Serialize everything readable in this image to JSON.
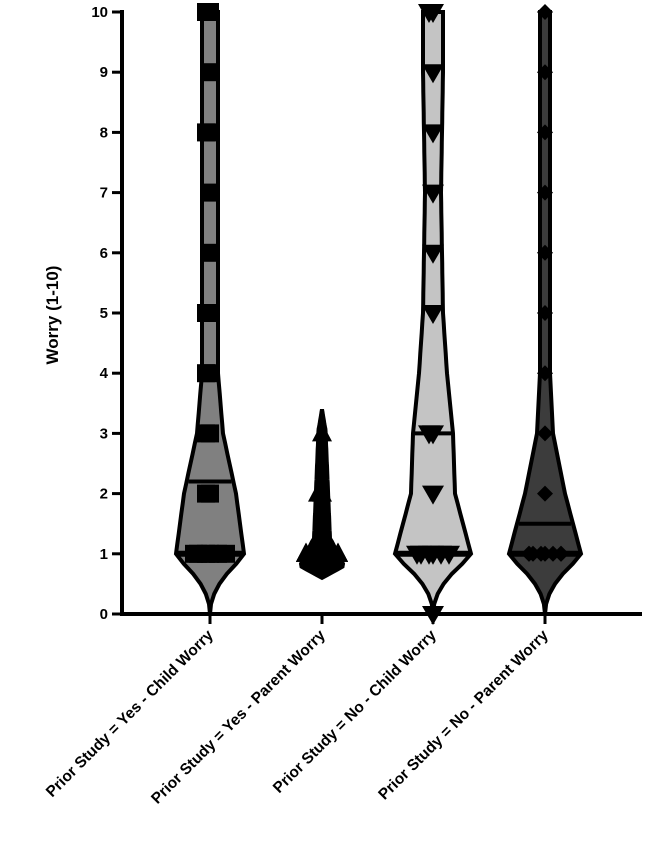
{
  "chart_data": {
    "type": "violin",
    "ylabel": "Worry (1-10)",
    "ylim": [
      0,
      10
    ],
    "yticks": [
      "0",
      "1",
      "2",
      "3",
      "4",
      "5",
      "6",
      "7",
      "8",
      "9",
      "10"
    ],
    "categories": [
      "Prior Study = Yes - Child Worry",
      "Prior Study = Yes - Parent Worry",
      "Prior Study = No - Child Worry",
      "Prior Study = No - Parent Worry"
    ],
    "series": [
      {
        "category": "Prior Study = Yes - Child Worry",
        "fill": "#808080",
        "marker": "square",
        "points": [
          1,
          1,
          1,
          1,
          1,
          1,
          2,
          2,
          3,
          3,
          4,
          4,
          5,
          5,
          6,
          7,
          8,
          8,
          9,
          10,
          10
        ],
        "quartiles": [
          1,
          1,
          2.2
        ]
      },
      {
        "category": "Prior Study = Yes - Parent Worry",
        "fill": "#000000",
        "marker": "triangle-up",
        "points": [
          1,
          1,
          1,
          1,
          1,
          1,
          1,
          1,
          1,
          1,
          1,
          1,
          2,
          2,
          3
        ],
        "quartiles": [
          1,
          1,
          1
        ]
      },
      {
        "category": "Prior Study = No - Child Worry",
        "fill": "#c4c4c4",
        "marker": "triangle-down",
        "points": [
          0,
          1,
          1,
          1,
          1,
          1,
          1,
          2,
          3,
          3,
          5,
          6,
          7,
          8,
          9,
          10,
          10
        ],
        "quartiles": [
          1,
          1,
          3
        ]
      },
      {
        "category": "Prior Study = No - Parent Worry",
        "fill": "#3c3c3c",
        "marker": "diamond",
        "points": [
          1,
          1,
          1,
          1,
          1,
          1,
          1,
          1,
          2,
          3,
          4,
          5,
          6,
          7,
          8,
          9,
          10
        ],
        "quartiles": [
          1,
          1,
          1.5
        ]
      }
    ],
    "grid": false,
    "legend": "none"
  }
}
